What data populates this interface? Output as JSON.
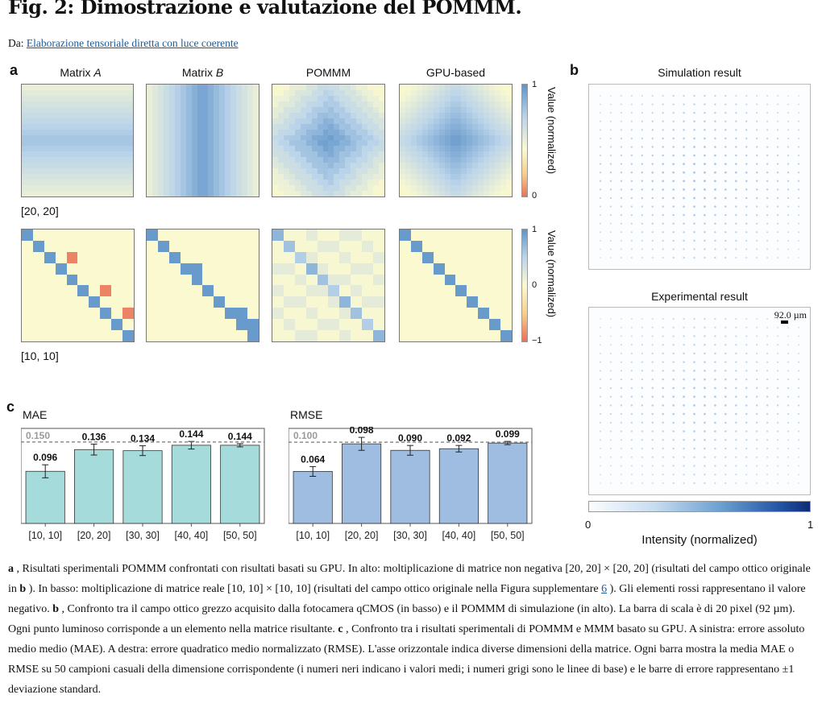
{
  "title": "Fig. 2: Dimostrazione e valutazione del POMMM.",
  "from": {
    "prefix": "Da: ",
    "link": "Elaborazione tensoriale diretta con luce coerente"
  },
  "panel_a": {
    "label": "a",
    "col_titles": [
      {
        "pre": "Matrix ",
        "em": "A"
      },
      {
        "pre": "Matrix ",
        "em": "B"
      },
      {
        "pre": "POMMM",
        "em": ""
      },
      {
        "pre": "GPU-based",
        "em": ""
      }
    ],
    "row1_size": "[20, 20]",
    "row2_size": "[10, 10]",
    "cbar1": {
      "top": "1",
      "bottom": "0",
      "label": "Value (normalized)"
    },
    "cbar2": {
      "top": "1",
      "zero": "0",
      "bottom": "−1",
      "label": "Value (normalized)"
    }
  },
  "panel_b": {
    "label": "b",
    "sim_title": "Simulation result",
    "exp_title": "Experimental result",
    "scale": "92.0 µm",
    "cbar_min": "0",
    "cbar_max": "1",
    "cbar_label": "Intensity (normalized)"
  },
  "chart_data": [
    {
      "type": "bar",
      "title": "MAE",
      "categories": [
        "[10, 10]",
        "[20, 20]",
        "[30, 30]",
        "[40, 40]",
        "[50, 50]"
      ],
      "values": [
        0.096,
        0.136,
        0.134,
        0.144,
        0.144
      ],
      "labels": [
        "0.096",
        "0.136",
        "0.134",
        "0.144",
        "0.144"
      ],
      "errors": [
        0.012,
        0.01,
        0.009,
        0.007,
        0.003
      ],
      "baseline": 0.15,
      "baseline_label": "0.150",
      "ylim": [
        0,
        0.175
      ],
      "color": "#a6dbdb"
    },
    {
      "type": "bar",
      "title": "RMSE",
      "categories": [
        "[10, 10]",
        "[20, 20]",
        "[30, 30]",
        "[40, 40]",
        "[50, 50]"
      ],
      "values": [
        0.064,
        0.098,
        0.09,
        0.092,
        0.099
      ],
      "labels": [
        "0.064",
        "0.098",
        "0.090",
        "0.092",
        "0.099"
      ],
      "errors": [
        0.006,
        0.008,
        0.006,
        0.004,
        0.002
      ],
      "baseline": 0.1,
      "baseline_label": "0.100",
      "ylim": [
        0,
        0.117
      ],
      "color": "#9fbde0"
    }
  ],
  "caption": {
    "a_label": "a",
    "a_text": " , Risultati sperimentali POMMM confrontati con risultati basati su GPU. In alto: moltiplicazione di matrice non negativa [20, 20] × [20, 20] (risultati del campo ottico originale in ",
    "a_ref": "b",
    "a_text2": " ). In basso: moltiplicazione di matrice reale [10, 10] × [10, 10] (risultati del campo ottico originale nella Figura supplementare ",
    "a_link": "6",
    "a_text3": " ). Gli elementi rossi rappresentano il valore negativo. ",
    "b_label": "b",
    "b_text": " , Confronto tra il campo ottico grezzo acquisito dalla fotocamera qCMOS (in basso) e il POMMM di simulazione (in alto). La barra di scala è di 20 pixel (92 µm). Ogni punto luminoso corrisponde a un elemento nella matrice risultante. ",
    "c_label": "c",
    "c_text": " , Confronto tra i risultati sperimentali di POMMM e MMM basato su GPU. A sinistra: errore assoluto medio medio (MAE). A destra: errore quadratico medio normalizzato (RMSE). L'asse orizzontale indica diverse dimensioni della matrice. Ogni barra mostra la media MAE o RMSE su 50 campioni casuali della dimensione corrispondente (i numeri neri indicano i valori medi; i numeri grigi sono le linee di base) e le barre di errore rappresentano ±1 deviazione standard."
  },
  "colors": {
    "positive": "#5f94c9",
    "zero": "#fbf9cf",
    "negative": "#e8705a"
  }
}
